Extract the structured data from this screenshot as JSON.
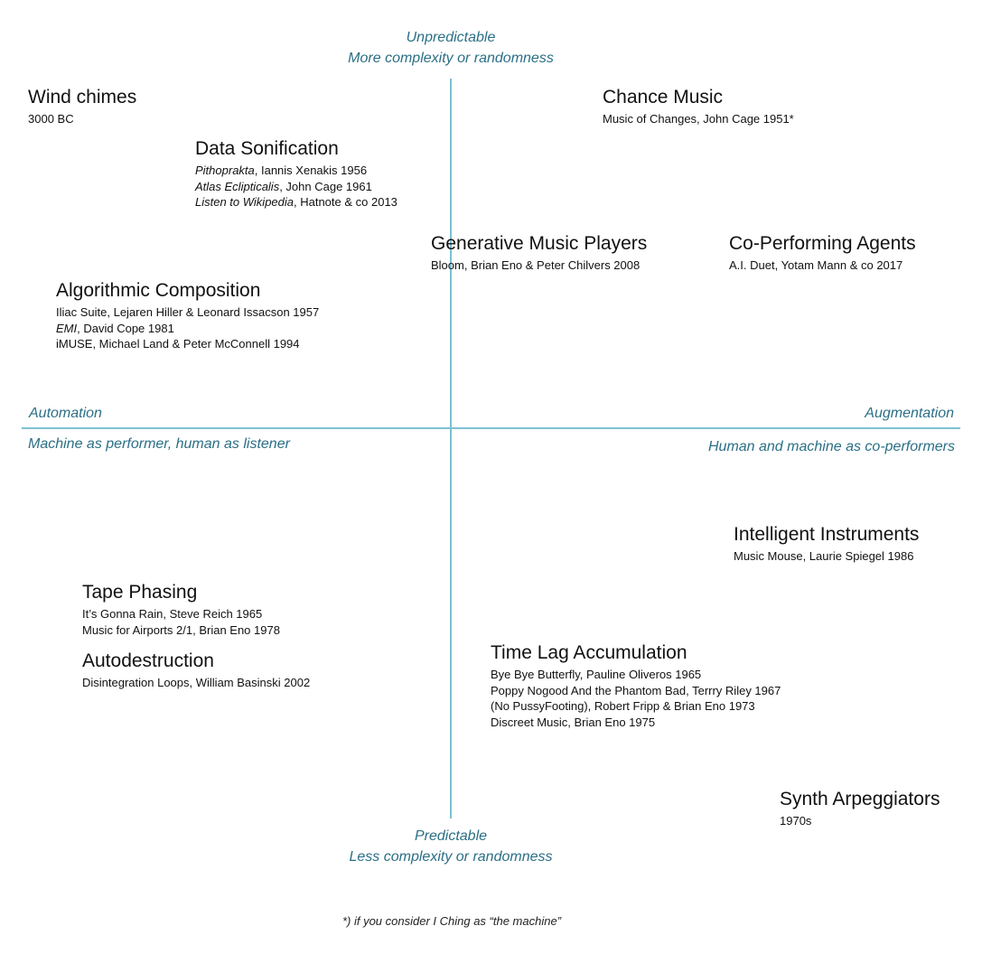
{
  "axes": {
    "top": [
      "Unpredictable",
      "More complexity or randomness"
    ],
    "bottom": [
      "Predictable",
      "Less complexity or randomness"
    ],
    "left": "Automation",
    "left_sub": "Machine as performer, human as listener",
    "right": "Augmentation",
    "right_sub": "Human and machine as co-performers"
  },
  "items": {
    "wind_chimes": {
      "title": "Wind chimes",
      "lines": [
        "3000 BC"
      ]
    },
    "chance_music": {
      "title": "Chance Music",
      "lines": [
        "Music of Changes, John Cage 1951*"
      ]
    },
    "data_sonification": {
      "title": "Data Sonification",
      "lines": [
        {
          "em": "Pithoprakta",
          "rest": ", Iannis Xenakis 1956"
        },
        {
          "em": "Atlas Eclipticalis",
          "rest": ", John Cage 1961"
        },
        {
          "em": "Listen to Wikipedia",
          "rest": ", Hatnote & co 2013"
        }
      ]
    },
    "generative_players": {
      "title": "Generative Music Players",
      "lines": [
        "Bloom, Brian Eno & Peter Chilvers 2008"
      ]
    },
    "co_performing": {
      "title": "Co-Performing Agents",
      "lines": [
        "A.I. Duet, Yotam Mann & co 2017"
      ]
    },
    "algorithmic": {
      "title": "Algorithmic Composition",
      "lines": [
        "Iliac Suite, Lejaren Hiller & Leonard Issacson 1957",
        {
          "em": "EMI",
          "rest": ", David Cope 1981"
        },
        "iMUSE, Michael Land & Peter McConnell 1994"
      ]
    },
    "intelligent": {
      "title": "Intelligent Instruments",
      "lines": [
        "Music Mouse, Laurie Spiegel 1986"
      ]
    },
    "tape_phasing": {
      "title": "Tape Phasing",
      "lines": [
        "It’s Gonna Rain, Steve Reich 1965",
        "Music for Airports 2/1, Brian Eno 1978"
      ]
    },
    "autodestruction": {
      "title": "Autodestruction",
      "lines": [
        "Disintegration Loops, William Basinski 2002"
      ]
    },
    "time_lag": {
      "title": "Time Lag Accumulation",
      "lines": [
        "Bye Bye Butterfly, Pauline Oliveros 1965",
        "Poppy Nogood And the Phantom Bad, Terrry Riley 1967",
        "(No PussyFooting), Robert Fripp & Brian Eno 1973",
        "Discreet Music, Brian Eno 1975"
      ]
    },
    "synth": {
      "title": "Synth Arpeggiators",
      "lines": [
        "1970s"
      ]
    }
  },
  "footnote": "*) if you consider I Ching as “the machine”"
}
